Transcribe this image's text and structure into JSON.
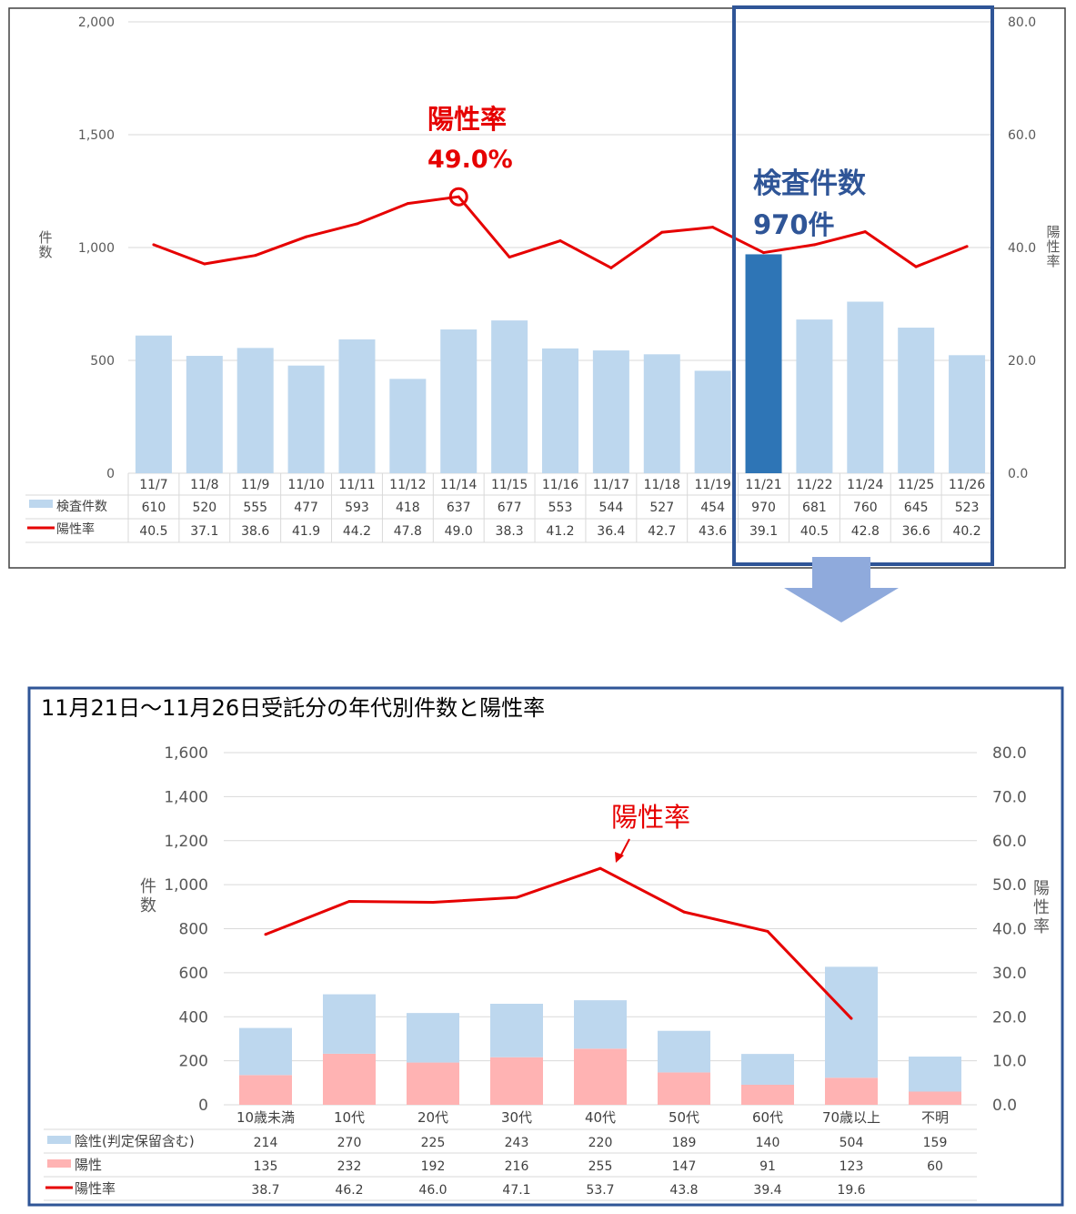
{
  "chart_data": [
    {
      "type": "bar",
      "categories": [
        "11/7",
        "11/8",
        "11/9",
        "11/10",
        "11/11",
        "11/12",
        "11/14",
        "11/15",
        "11/16",
        "11/17",
        "11/18",
        "11/19",
        "11/21",
        "11/22",
        "11/24",
        "11/25",
        "11/26"
      ],
      "series": [
        {
          "name": "検査件数",
          "type": "bar",
          "axis": "left",
          "values": [
            610,
            520,
            555,
            477,
            593,
            418,
            637,
            677,
            553,
            544,
            527,
            454,
            970,
            681,
            760,
            645,
            523
          ]
        },
        {
          "name": "陽性率",
          "type": "line",
          "axis": "right",
          "values": [
            40.5,
            37.1,
            38.6,
            41.9,
            44.2,
            47.8,
            49.0,
            38.3,
            41.2,
            36.4,
            42.7,
            43.6,
            39.1,
            40.5,
            42.8,
            36.6,
            40.2
          ]
        }
      ],
      "y_left": {
        "label": "件数",
        "ticks": [
          "2,000",
          "1,500",
          "1,000",
          "500",
          "0"
        ],
        "range": [
          0,
          2000
        ]
      },
      "y_right": {
        "label": "陽性率",
        "ticks": [
          "80.0",
          "60.0",
          "40.0",
          "20.0",
          "0.0"
        ],
        "range": [
          0,
          80
        ]
      },
      "highlight_index": 12,
      "colors": {
        "bar": "#bdd7ee",
        "bar_highlight": "#2e75b6",
        "line": "#e60000",
        "frame": "#2f5597"
      },
      "annotations": [
        {
          "label": "陽性率",
          "value": "49.0%",
          "color": "#e60000"
        },
        {
          "label": "検査件数",
          "value": "970件",
          "color": "#2f5597"
        }
      ],
      "grid": true,
      "legend": "data-table-left"
    },
    {
      "type": "bar",
      "title": "11月21日～11月26日受託分の年代別件数と陽性率",
      "categories": [
        "10歳未満",
        "10代",
        "20代",
        "30代",
        "40代",
        "50代",
        "60代",
        "70歳以上",
        "不明"
      ],
      "series": [
        {
          "name": "陰性(判定保留含む)",
          "type": "stacked-bar",
          "axis": "left",
          "values": [
            214,
            270,
            225,
            243,
            220,
            189,
            140,
            504,
            159
          ]
        },
        {
          "name": "陽性",
          "type": "stacked-bar",
          "axis": "left",
          "values": [
            135,
            232,
            192,
            216,
            255,
            147,
            91,
            123,
            60
          ]
        },
        {
          "name": "陽性率",
          "type": "line",
          "axis": "right",
          "values": [
            38.7,
            46.2,
            46.0,
            47.1,
            53.7,
            43.8,
            39.4,
            19.6,
            null
          ]
        }
      ],
      "y_left": {
        "label": "件数",
        "ticks": [
          "1,600",
          "1,400",
          "1,200",
          "1,000",
          "800",
          "600",
          "400",
          "200",
          "0"
        ],
        "range": [
          0,
          1600
        ]
      },
      "y_right": {
        "label": "陽性率",
        "ticks": [
          "80.0",
          "70.0",
          "60.0",
          "50.0",
          "40.0",
          "30.0",
          "20.0",
          "10.0",
          "0.0"
        ],
        "range": [
          0,
          80
        ]
      },
      "colors": {
        "negative": "#bdd7ee",
        "positive": "#ffb3b3",
        "line": "#e60000",
        "frame": "#2f5597"
      },
      "annotations": [
        {
          "label": "陽性率",
          "color": "#e60000"
        }
      ],
      "grid": true,
      "legend": "data-table-left"
    }
  ],
  "arrow": {
    "color": "#8faadc"
  }
}
